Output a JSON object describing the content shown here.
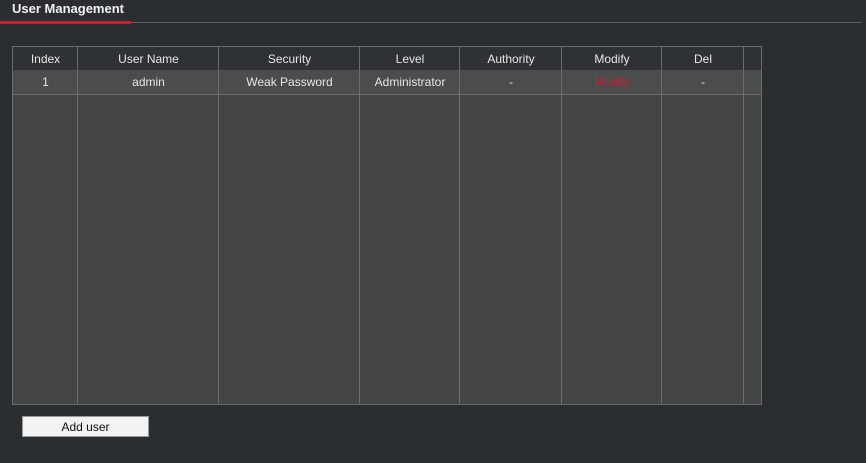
{
  "page": {
    "title": "User Management"
  },
  "table": {
    "columns": [
      "Index",
      "User Name",
      "Security",
      "Level",
      "Authority",
      "Modify",
      "Del"
    ],
    "rows": [
      {
        "index": "1",
        "user_name": "admin",
        "security": "Weak Password",
        "level": "Administrator",
        "authority": "-",
        "modify": "Modify",
        "del": "-"
      }
    ]
  },
  "buttons": {
    "add_user": "Add user"
  },
  "colors": {
    "accent": "#c0233b",
    "background": "#2b2e31"
  }
}
